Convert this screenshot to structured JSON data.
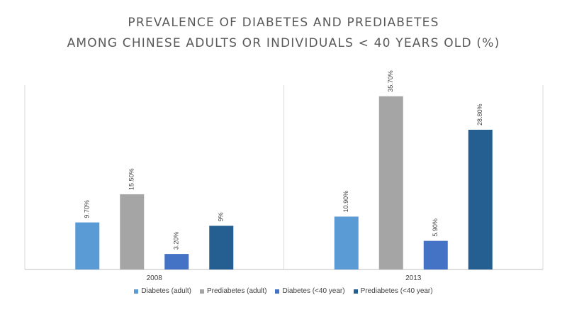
{
  "chart_data": {
    "type": "bar",
    "title": [
      "PREVALENCE OF DIABETES AND PREDIABETES",
      "AMONG CHINESE ADULTS OR INDIVIDUALS < 40 YEARS OLD (%)"
    ],
    "categories": [
      "2008",
      "2013"
    ],
    "series": [
      {
        "name": "Diabetes (adult)",
        "color": "#5b9bd5",
        "values": [
          9.7,
          10.9
        ],
        "labels": [
          "9.70%",
          "10.90%"
        ]
      },
      {
        "name": "Prediabetes (adult)",
        "color": "#a5a5a5",
        "values": [
          15.5,
          35.7
        ],
        "labels": [
          "15.50%",
          "35.70%"
        ]
      },
      {
        "name": "Diabetes (<40 year)",
        "color": "#4472c4",
        "values": [
          3.2,
          5.9
        ],
        "labels": [
          "3.20%",
          "5.90%"
        ]
      },
      {
        "name": "Prediabetes (<40 year)",
        "color": "#255e91",
        "values": [
          9,
          28.8
        ],
        "labels": [
          "9%",
          "28.80%"
        ]
      }
    ],
    "xlabel": "",
    "ylabel": "",
    "ylim": [
      0,
      38
    ],
    "grid": false,
    "legend": "bottom"
  }
}
